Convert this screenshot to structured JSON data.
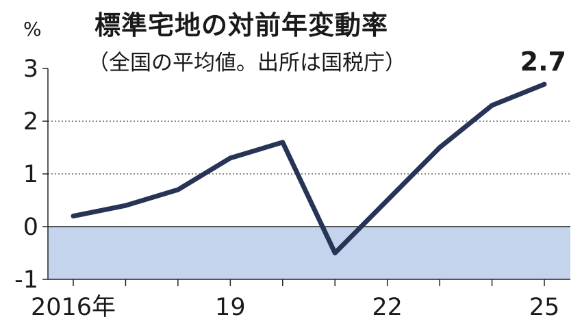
{
  "chart_data": {
    "type": "line",
    "title": "標準宅地の対前年変動率",
    "subtitle": "（全国の平均値。出所は国税庁）",
    "ylabel": "%",
    "x": [
      2016,
      2017,
      2018,
      2019,
      2020,
      2021,
      2022,
      2023,
      2024,
      2025
    ],
    "xtick_labels": [
      {
        "x": 2016,
        "label": "2016年"
      },
      {
        "x": 2019,
        "label": "19"
      },
      {
        "x": 2022,
        "label": "22"
      },
      {
        "x": 2025,
        "label": "25"
      }
    ],
    "yticks": [
      3,
      2,
      1,
      0,
      -1
    ],
    "ylim": [
      -1,
      3
    ],
    "series": [
      {
        "values": [
          0.2,
          0.4,
          0.7,
          1.3,
          1.6,
          -0.5,
          0.5,
          1.5,
          2.3,
          2.7
        ],
        "color": "#283456"
      }
    ],
    "annotations": [
      {
        "x": 2025,
        "text": "2.7"
      }
    ],
    "negative_fill": "#c4d4ec",
    "grid": "dotted horizontal at 1 and 2"
  }
}
